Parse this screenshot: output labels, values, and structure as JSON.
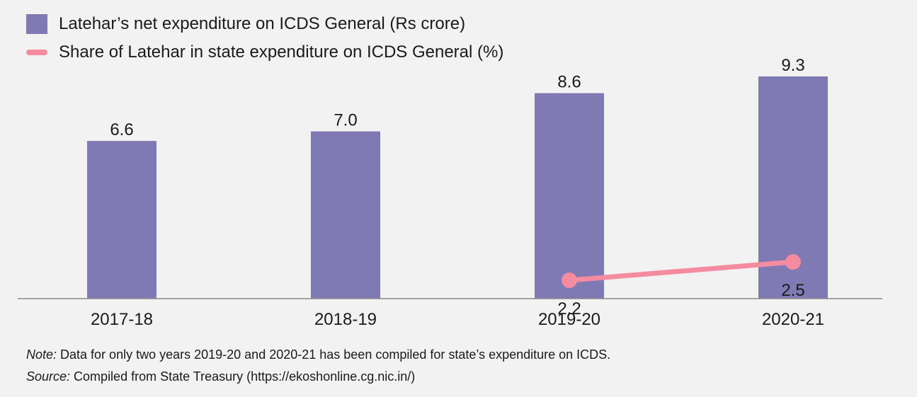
{
  "chart_data": {
    "type": "bar",
    "categories": [
      "2017-18",
      "2018-19",
      "2019-20",
      "2020-21"
    ],
    "series": [
      {
        "name": "Latehar’s net expenditure on ICDS General (Rs crore)",
        "type": "bar",
        "values": [
          6.6,
          7.0,
          8.6,
          9.3
        ],
        "labels": [
          "6.6",
          "7.0",
          "8.6",
          "9.3"
        ],
        "color": "#7f7ab3"
      },
      {
        "name": "Share of Latehar in state expenditure on ICDS General (%)",
        "type": "line",
        "values": [
          null,
          null,
          2.2,
          2.5
        ],
        "labels": [
          "",
          "",
          "2.2",
          "2.5"
        ],
        "color": "#f58ba0"
      }
    ],
    "ylim": [
      0,
      10
    ],
    "grid": false,
    "legend_position": "top-left"
  },
  "notes": {
    "note_prefix": "Note:",
    "note_text": " Data for only two years 2019-20 and 2020-21 has been compiled for state’s expenditure on ICDS.",
    "source_prefix": "Source:",
    "source_text": " Compiled from State Treasury (https://ekoshonline.cg.nic.in/)"
  }
}
